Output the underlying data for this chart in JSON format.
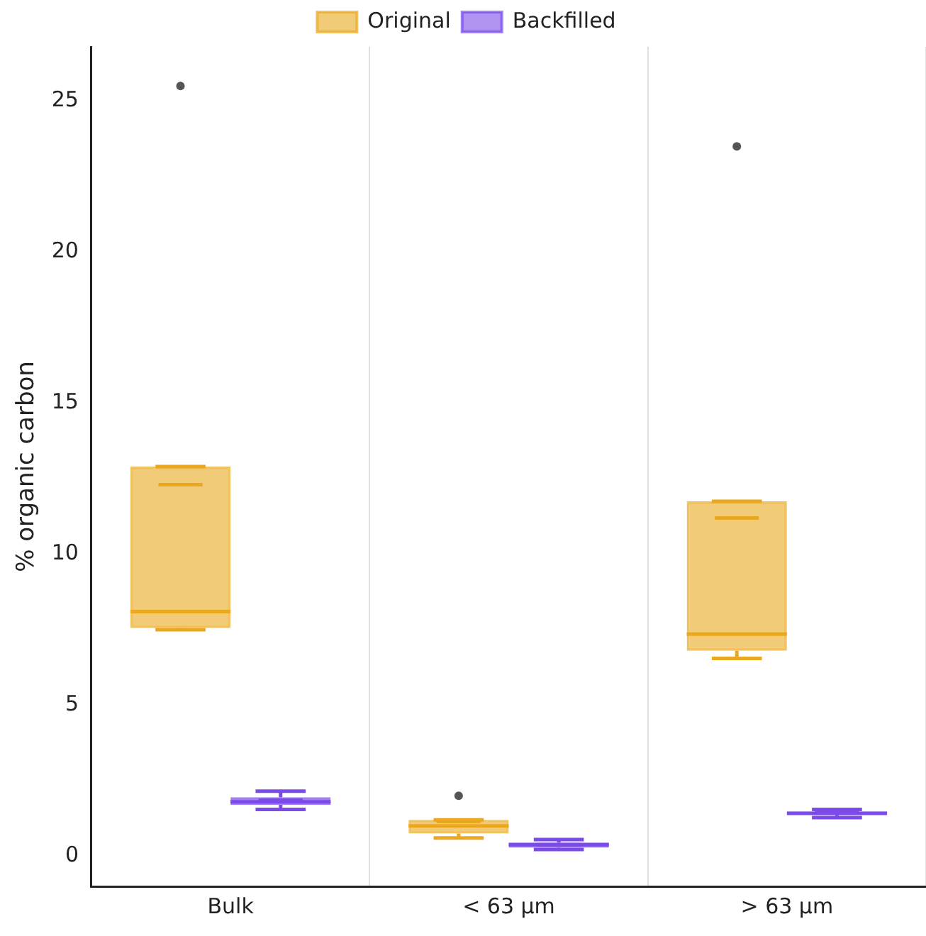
{
  "chart_data": {
    "type": "box",
    "ylabel": "% organic carbon",
    "categories": [
      "Bulk",
      "< 63 µm",
      "> 63 µm"
    ],
    "series": [
      {
        "name": "Original",
        "color": "#e9a820",
        "boxes": [
          {
            "low": 7.5,
            "q1": 7.55,
            "median": 8.1,
            "q3": 12.9,
            "high": 12.9,
            "mean": 12.3,
            "outliers": [
              25.5
            ]
          },
          {
            "low": 0.6,
            "q1": 0.75,
            "median": 1.0,
            "q3": 1.2,
            "high": 1.2,
            "mean": 1.15,
            "outliers": [
              2.0
            ]
          },
          {
            "low": 6.55,
            "q1": 6.8,
            "median": 7.35,
            "q3": 11.75,
            "high": 11.75,
            "mean": 11.2,
            "outliers": [
              23.5
            ]
          }
        ]
      },
      {
        "name": "Backfilled",
        "color": "#7b4ae8",
        "boxes": [
          {
            "low": 1.55,
            "q1": 1.7,
            "median": 1.8,
            "q3": 1.95,
            "high": 2.15,
            "mean": 1.85
          },
          {
            "low": 0.22,
            "q1": 0.28,
            "median": 0.38,
            "q3": 0.45,
            "high": 0.55,
            "mean": 0.38
          },
          {
            "low": 1.28,
            "q1": 1.38,
            "median": 1.42,
            "q3": 1.48,
            "high": 1.55,
            "mean": 1.45
          }
        ]
      }
    ],
    "ylim": [
      -1,
      26.8
    ],
    "yticks": [
      0,
      5,
      10,
      15,
      20,
      25
    ],
    "grid": "x",
    "legend": "top"
  }
}
